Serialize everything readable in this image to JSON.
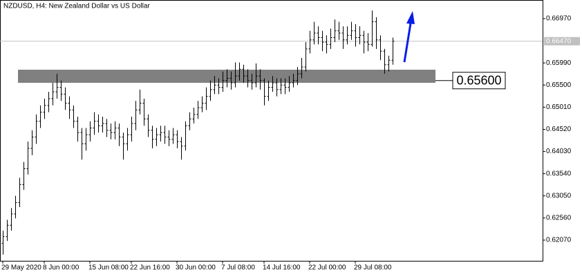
{
  "chart_data": {
    "type": "ohlc",
    "title": "NZDUSD, H4:  New Zealand Dollar vs US Dollar",
    "color": "#000000",
    "categories": [
      "29 May 2020",
      null,
      null,
      null,
      null,
      null,
      null,
      null,
      null,
      null,
      "8 Jun 00:00",
      null,
      null,
      null,
      null,
      null,
      null,
      null,
      null,
      null,
      null,
      "15 Jun 08:00",
      null,
      null,
      null,
      null,
      null,
      null,
      null,
      null,
      null,
      "22 Jun 16:00",
      null,
      null,
      null,
      null,
      null,
      null,
      null,
      null,
      null,
      null,
      "30 Jun 00:00",
      null,
      null,
      null,
      null,
      null,
      null,
      null,
      null,
      null,
      null,
      "7 Jul 08:00",
      null,
      null,
      null,
      null,
      null,
      null,
      null,
      null,
      null,
      "14 Jul 16:00",
      null,
      null,
      null,
      null,
      null,
      null,
      null,
      null,
      null,
      null,
      "22 Jul 00:00",
      null,
      null,
      null,
      null,
      null,
      null,
      null,
      null,
      null,
      null,
      "29 Jul 08:00",
      null,
      null,
      null,
      null,
      null,
      null,
      null,
      null,
      null
    ],
    "open": [
      0.62,
      0.6215,
      0.624,
      0.6265,
      0.629,
      0.633,
      0.6365,
      0.641,
      0.6435,
      0.647,
      0.649,
      0.6505,
      0.652,
      0.6535,
      0.6545,
      0.653,
      0.651,
      0.6495,
      0.647,
      0.6445,
      0.642,
      0.644,
      0.6455,
      0.647,
      0.646,
      0.6465,
      0.645,
      0.6445,
      0.6455,
      0.6435,
      0.642,
      0.644,
      0.6465,
      0.6495,
      0.651,
      0.6475,
      0.645,
      0.643,
      0.644,
      0.6445,
      0.6435,
      0.643,
      0.644,
      0.6425,
      0.6415,
      0.646,
      0.6475,
      0.6485,
      0.65,
      0.651,
      0.6525,
      0.654,
      0.655,
      0.6545,
      0.656,
      0.6565,
      0.6555,
      0.657,
      0.6585,
      0.657,
      0.656,
      0.6555,
      0.657,
      0.656,
      0.6525,
      0.6545,
      0.6555,
      0.654,
      0.655,
      0.6545,
      0.6555,
      0.656,
      0.6575,
      0.659,
      0.663,
      0.665,
      0.6665,
      0.6655,
      0.6645,
      0.664,
      0.6655,
      0.667,
      0.6665,
      0.665,
      0.666,
      0.667,
      0.6655,
      0.666,
      0.6645,
      0.664,
      0.669,
      0.665,
      0.6625,
      0.6595,
      0.6605
    ],
    "high": [
      0.6228,
      0.6252,
      0.6278,
      0.6305,
      0.6345,
      0.638,
      0.6425,
      0.645,
      0.6485,
      0.6505,
      0.652,
      0.6535,
      0.6555,
      0.6575,
      0.656,
      0.6545,
      0.6525,
      0.6505,
      0.648,
      0.6455,
      0.6455,
      0.647,
      0.649,
      0.6485,
      0.648,
      0.6475,
      0.6465,
      0.647,
      0.6465,
      0.6445,
      0.6455,
      0.648,
      0.6515,
      0.654,
      0.652,
      0.6485,
      0.646,
      0.6455,
      0.646,
      0.646,
      0.645,
      0.6455,
      0.645,
      0.6435,
      0.647,
      0.649,
      0.65,
      0.6515,
      0.6525,
      0.6545,
      0.656,
      0.657,
      0.6565,
      0.658,
      0.6585,
      0.658,
      0.66,
      0.66,
      0.6595,
      0.6585,
      0.6575,
      0.6598,
      0.6585,
      0.6565,
      0.656,
      0.657,
      0.6565,
      0.6565,
      0.6565,
      0.657,
      0.6575,
      0.659,
      0.661,
      0.6645,
      0.667,
      0.669,
      0.668,
      0.667,
      0.666,
      0.6675,
      0.6695,
      0.669,
      0.668,
      0.668,
      0.669,
      0.6685,
      0.668,
      0.667,
      0.6665,
      0.6715,
      0.67,
      0.666,
      0.663,
      0.6615,
      0.6655
    ],
    "low": [
      0.6175,
      0.6205,
      0.6228,
      0.6255,
      0.628,
      0.6318,
      0.6352,
      0.6395,
      0.642,
      0.6455,
      0.6475,
      0.649,
      0.6505,
      0.652,
      0.6515,
      0.6495,
      0.6475,
      0.6455,
      0.6425,
      0.6385,
      0.6405,
      0.6425,
      0.644,
      0.6445,
      0.6445,
      0.6435,
      0.643,
      0.643,
      0.6415,
      0.6385,
      0.6405,
      0.6425,
      0.645,
      0.6485,
      0.646,
      0.6435,
      0.641,
      0.6415,
      0.6425,
      0.642,
      0.6415,
      0.642,
      0.641,
      0.6385,
      0.6405,
      0.645,
      0.6465,
      0.6475,
      0.649,
      0.6495,
      0.6515,
      0.653,
      0.653,
      0.6535,
      0.6545,
      0.654,
      0.6545,
      0.656,
      0.6555,
      0.6545,
      0.654,
      0.6545,
      0.654,
      0.6505,
      0.6515,
      0.6535,
      0.6525,
      0.653,
      0.653,
      0.6535,
      0.6545,
      0.655,
      0.6565,
      0.658,
      0.662,
      0.664,
      0.664,
      0.6625,
      0.662,
      0.663,
      0.6645,
      0.665,
      0.663,
      0.664,
      0.665,
      0.6635,
      0.664,
      0.662,
      0.6625,
      0.6635,
      0.663,
      0.6605,
      0.6575,
      0.658,
      0.6595
    ],
    "close": [
      0.6215,
      0.624,
      0.6265,
      0.629,
      0.633,
      0.6365,
      0.641,
      0.6435,
      0.647,
      0.649,
      0.6505,
      0.652,
      0.6535,
      0.6545,
      0.653,
      0.651,
      0.6495,
      0.647,
      0.6445,
      0.642,
      0.644,
      0.6455,
      0.647,
      0.646,
      0.6465,
      0.645,
      0.6445,
      0.6455,
      0.6435,
      0.642,
      0.644,
      0.6465,
      0.6495,
      0.651,
      0.6475,
      0.645,
      0.643,
      0.644,
      0.6445,
      0.6435,
      0.643,
      0.644,
      0.6425,
      0.6415,
      0.646,
      0.6475,
      0.6485,
      0.65,
      0.651,
      0.6525,
      0.654,
      0.655,
      0.6545,
      0.656,
      0.6565,
      0.6555,
      0.657,
      0.6585,
      0.657,
      0.656,
      0.6555,
      0.657,
      0.656,
      0.6525,
      0.6545,
      0.6555,
      0.654,
      0.655,
      0.6545,
      0.6555,
      0.656,
      0.6575,
      0.659,
      0.663,
      0.665,
      0.6665,
      0.6655,
      0.6645,
      0.664,
      0.6655,
      0.667,
      0.6665,
      0.665,
      0.666,
      0.667,
      0.6655,
      0.666,
      0.6645,
      0.664,
      0.669,
      0.665,
      0.6625,
      0.6595,
      0.6605,
      0.6647
    ],
    "ylim": [
      0.61612,
      0.67382
    ],
    "yticks": [
      {
        "value": 0.6697,
        "label": "0.66970"
      },
      {
        "value": 0.6599,
        "label": "0.65990"
      },
      {
        "value": 0.655,
        "label": "0.65500"
      },
      {
        "value": 0.6501,
        "label": "0.65010"
      },
      {
        "value": 0.6452,
        "label": "0.64520"
      },
      {
        "value": 0.6403,
        "label": "0.64030"
      },
      {
        "value": 0.6354,
        "label": "0.63540"
      },
      {
        "value": 0.6305,
        "label": "0.63050"
      },
      {
        "value": 0.6256,
        "label": "0.62560"
      },
      {
        "value": 0.6207,
        "label": "0.62070"
      }
    ],
    "current_price": {
      "value": 0.6647,
      "label": "0.66470"
    },
    "zone": {
      "top": 0.6584,
      "bottom": 0.6555,
      "color": "#808080",
      "level": {
        "value": 0.656,
        "label": "0.65600"
      }
    },
    "grid": false
  }
}
